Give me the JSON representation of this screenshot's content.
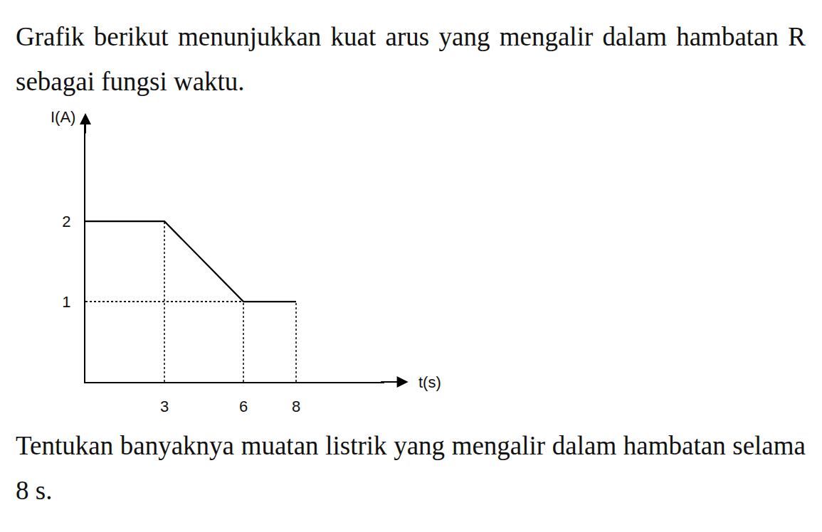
{
  "question": {
    "intro": "Grafik berikut menunjukkan kuat arus yang mengalir dalam hambatan R sebagai fungsi waktu.",
    "task": "Tentukan banyaknya muatan listrik yang mengalir dalam hambatan selama 8 s."
  },
  "chart_data": {
    "type": "line",
    "x": [
      0,
      3,
      6,
      8
    ],
    "values": [
      2,
      2,
      1,
      1
    ],
    "color": "#000000",
    "line_style": "solid",
    "xlim": [
      0,
      11.35
    ],
    "ylim": [
      0,
      3.25
    ],
    "xticks": [
      3,
      6,
      8
    ],
    "yticks": [
      1,
      2
    ],
    "x_label": "t(s)",
    "y_label": "I(A)",
    "grid": false
  }
}
